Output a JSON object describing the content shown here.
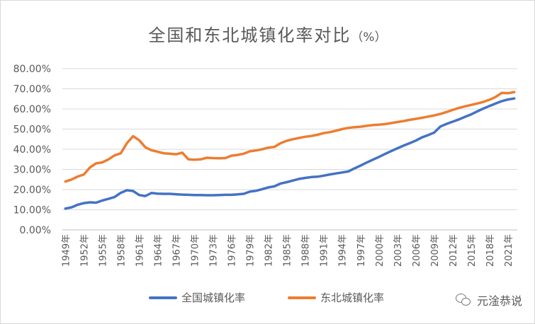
{
  "title": {
    "main": "全国和东北城镇化率对比",
    "unit": "（%）"
  },
  "watermark": {
    "text": "元淦恭说",
    "icon": "wechat-icon"
  },
  "colors": {
    "national": "#4472c4",
    "northeast": "#ed7d31",
    "grid": "#d9d9d9",
    "text": "#595959"
  },
  "chart_data": {
    "type": "line",
    "title": "全国和东北城镇化率对比（%）",
    "xlabel": "",
    "ylabel": "",
    "ylim": [
      0,
      80
    ],
    "y_ticks": [
      "0.00%",
      "10.00%",
      "20.00%",
      "30.00%",
      "40.00%",
      "50.00%",
      "60.00%",
      "70.00%",
      "80.00%"
    ],
    "x_tick_labels": [
      "1949年",
      "1952年",
      "1955年",
      "1958年",
      "1961年",
      "1964年",
      "1967年",
      "1970年",
      "1973年",
      "1976年",
      "1979年",
      "1982年",
      "1985年",
      "1988年",
      "1991年",
      "1994年",
      "1997年",
      "2000年",
      "2003年",
      "2006年",
      "2009年",
      "2012年",
      "2015年",
      "2018年",
      "2021年"
    ],
    "x_start": 1949,
    "x_end": 2022,
    "grid": true,
    "legend_position": "bottom",
    "series": [
      {
        "name": "全国城镇化率",
        "color": "#4472c4",
        "values": [
          10.6,
          11.2,
          12.5,
          13.3,
          13.7,
          13.5,
          14.6,
          15.4,
          16.3,
          18.4,
          19.7,
          19.3,
          17.3,
          16.8,
          18.3,
          18.0,
          17.9,
          17.9,
          17.7,
          17.5,
          17.4,
          17.3,
          17.3,
          17.2,
          17.2,
          17.3,
          17.4,
          17.4,
          17.6,
          17.9,
          19.0,
          19.4,
          20.2,
          21.1,
          21.6,
          23.0,
          23.7,
          24.5,
          25.3,
          25.8,
          26.2,
          26.4,
          26.9,
          27.5,
          28.0,
          28.5,
          29.0,
          30.5,
          31.9,
          33.4,
          34.8,
          36.2,
          37.7,
          39.1,
          40.5,
          41.8,
          43.0,
          44.3,
          45.9,
          47.0,
          48.3,
          51.3,
          52.6,
          53.7,
          54.8,
          56.1,
          57.3,
          58.8,
          60.2,
          61.5,
          62.7,
          63.9,
          64.7,
          65.2
        ]
      },
      {
        "name": "东北城镇化率",
        "color": "#ed7d31",
        "values": [
          24.0,
          25.0,
          26.5,
          27.5,
          31.0,
          33.0,
          33.5,
          35.0,
          37.0,
          38.0,
          43.0,
          46.5,
          44.5,
          41.0,
          39.5,
          38.8,
          38.0,
          37.8,
          37.5,
          38.3,
          35.0,
          34.8,
          35.0,
          35.8,
          35.6,
          35.5,
          35.6,
          36.8,
          37.2,
          37.8,
          39.0,
          39.4,
          40.0,
          40.8,
          41.2,
          43.0,
          44.2,
          45.0,
          45.6,
          46.2,
          46.6,
          47.2,
          48.0,
          48.5,
          49.2,
          50.0,
          50.6,
          51.0,
          51.2,
          51.6,
          52.0,
          52.2,
          52.5,
          53.0,
          53.5,
          54.0,
          54.6,
          55.1,
          55.6,
          56.2,
          56.8,
          57.5,
          58.5,
          59.5,
          60.5,
          61.3,
          62.0,
          62.7,
          63.5,
          64.6,
          66.0,
          68.0,
          67.8,
          68.4
        ]
      }
    ]
  }
}
